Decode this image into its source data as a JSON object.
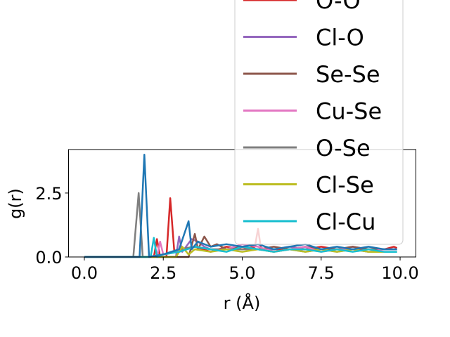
{
  "chart_data": {
    "type": "line",
    "xlabel": "r (Å)",
    "ylabel": "g(r)",
    "xlim": [
      -0.5,
      10.5
    ],
    "ylim": [
      0.0,
      4.2
    ],
    "xticks": [
      0.0,
      2.5,
      5.0,
      7.5,
      10.0
    ],
    "xtick_labels": [
      "0.0",
      "2.5",
      "5.0",
      "7.5",
      "10.0"
    ],
    "yticks": [
      0.0,
      2.5
    ],
    "ytick_labels": [
      "0.0",
      "2.5"
    ],
    "grid": false,
    "legend_position": "upper right (extends above plot)",
    "series": [
      {
        "name": "O-O",
        "color": "#d62728",
        "x": [
          0,
          2.2,
          2.3,
          2.4,
          2.6,
          2.72,
          2.85,
          3.0,
          3.5,
          4.0,
          4.5,
          5.0,
          5.4,
          5.5,
          5.6,
          6.0,
          6.5,
          7.0,
          7.5,
          8.0,
          8.5,
          9.0,
          9.5,
          9.8,
          9.9
        ],
        "y": [
          0,
          0,
          0.7,
          0,
          0,
          2.3,
          0.2,
          0.3,
          0.4,
          0.2,
          0.4,
          0.3,
          0.4,
          1.1,
          0.3,
          0.3,
          0.3,
          0.3,
          0.4,
          0.3,
          0.3,
          0.3,
          0.3,
          0.4,
          0.35
        ]
      },
      {
        "name": "Cl-O",
        "color": "#9467bd",
        "x": [
          0,
          2.9,
          3.0,
          3.1,
          3.4,
          3.6,
          3.8,
          4.0,
          4.5,
          5.0,
          5.5,
          6.0,
          6.5,
          7.0,
          7.5,
          8.0,
          8.5,
          9.0,
          9.5,
          9.9
        ],
        "y": [
          0,
          0,
          0.8,
          0.2,
          0.7,
          0.6,
          0.4,
          0.3,
          0.3,
          0.4,
          0.3,
          0.3,
          0.4,
          0.3,
          0.3,
          0.3,
          0.4,
          0.3,
          0.3,
          0.3
        ]
      },
      {
        "name": "Se-Se",
        "color": "#8c564b",
        "x": [
          0,
          3.3,
          3.5,
          3.6,
          3.8,
          4.0,
          4.2,
          4.5,
          5.0,
          5.5,
          6.0,
          6.5,
          7.0,
          7.5,
          8.0,
          8.5,
          9.0,
          9.5,
          9.9
        ],
        "y": [
          0,
          0,
          0.9,
          0.3,
          0.8,
          0.4,
          0.5,
          0.3,
          0.4,
          0.3,
          0.4,
          0.3,
          0.4,
          0.3,
          0.3,
          0.4,
          0.3,
          0.3,
          0.3
        ]
      },
      {
        "name": "Cu-Se",
        "color": "#e377c2",
        "x": [
          0,
          2.3,
          2.4,
          2.5,
          3.0,
          3.5,
          4.0,
          4.5,
          5.0,
          5.5,
          6.0,
          6.5,
          7.0,
          7.5,
          8.0,
          8.5,
          9.0,
          9.5,
          9.9
        ],
        "y": [
          0,
          0,
          0.6,
          0.1,
          0.2,
          0.4,
          0.3,
          0.3,
          0.5,
          0.4,
          0.2,
          0.3,
          0.4,
          0.2,
          0.3,
          0.3,
          0.2,
          0.3,
          0.3
        ]
      },
      {
        "name": "O-Se",
        "color": "#7f7f7f",
        "x": [
          0,
          1.55,
          1.72,
          1.85,
          2.0,
          2.5,
          3.0,
          3.5,
          4.0,
          4.5,
          5.0,
          5.5,
          6.0,
          6.5,
          7.0,
          7.5,
          8.0,
          8.5,
          9.0,
          9.5,
          9.9
        ],
        "y": [
          0,
          0,
          2.5,
          0,
          0,
          0.1,
          0.3,
          0.4,
          0.3,
          0.3,
          0.3,
          0.3,
          0.2,
          0.3,
          0.2,
          0.3,
          0.2,
          0.3,
          0.2,
          0.2,
          0.2
        ]
      },
      {
        "name": "Cl-Se",
        "color": "#bcbd22",
        "x": [
          0,
          2.9,
          3.1,
          3.3,
          3.5,
          4.0,
          4.5,
          5.0,
          5.5,
          6.0,
          6.5,
          7.0,
          7.5,
          8.0,
          8.5,
          9.0,
          9.5,
          9.9
        ],
        "y": [
          0,
          0,
          0.4,
          0.1,
          0.3,
          0.2,
          0.3,
          0.2,
          0.3,
          0.2,
          0.3,
          0.2,
          0.3,
          0.2,
          0.3,
          0.2,
          0.2,
          0.2
        ]
      },
      {
        "name": "Cl-Cu",
        "color": "#17becf",
        "x": [
          0,
          2.1,
          2.2,
          2.3,
          2.5,
          3.0,
          3.5,
          4.0,
          4.5,
          5.0,
          5.5,
          6.0,
          6.5,
          7.0,
          7.5,
          8.0,
          8.5,
          9.0,
          9.5,
          9.9
        ],
        "y": [
          0,
          0,
          0.75,
          0,
          0.1,
          0.2,
          0.4,
          0.3,
          0.2,
          0.4,
          0.3,
          0.2,
          0.3,
          0.3,
          0.2,
          0.3,
          0.2,
          0.3,
          0.2,
          0.2
        ]
      },
      {
        "name": "",
        "color": "#1f77b4",
        "x": [
          0,
          1.75,
          1.9,
          2.05,
          2.5,
          3.0,
          3.3,
          3.4,
          3.6,
          4.0,
          4.5,
          5.0,
          5.5,
          6.0,
          6.5,
          7.0,
          7.5,
          8.0,
          8.5,
          9.0,
          9.5,
          9.9
        ],
        "y": [
          0,
          0,
          4.0,
          0,
          0.1,
          0.3,
          1.4,
          0.3,
          0.6,
          0.4,
          0.5,
          0.4,
          0.5,
          0.3,
          0.4,
          0.5,
          0.3,
          0.4,
          0.3,
          0.4,
          0.3,
          0.3
        ]
      }
    ]
  }
}
